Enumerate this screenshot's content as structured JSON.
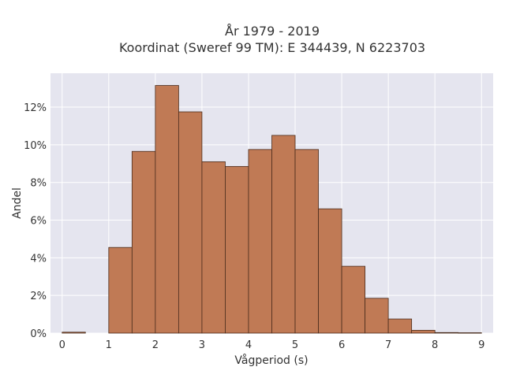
{
  "chart_data": {
    "type": "bar",
    "title_line1": "År 1979 - 2019",
    "title_line2": "Koordinat (Sweref 99 TM): E 344439, N 6223703",
    "xlabel": "Vågperiod (s)",
    "ylabel": "Andel",
    "x_ticks": [
      "0",
      "1",
      "2",
      "3",
      "4",
      "5",
      "6",
      "7",
      "8",
      "9"
    ],
    "y_ticks": [
      "0%",
      "2%",
      "4%",
      "6%",
      "8%",
      "10%",
      "12%"
    ],
    "xlim": [
      -0.25,
      9.25
    ],
    "ylim": [
      0,
      13.8
    ],
    "bin_width": 0.5,
    "bin_starts": [
      0,
      0.5,
      1,
      1.5,
      2,
      2.5,
      3,
      3.5,
      4,
      4.5,
      5,
      5.5,
      6,
      6.5,
      7,
      7.5,
      8,
      8.5
    ],
    "values": [
      0.05,
      0,
      4.55,
      9.65,
      13.15,
      11.75,
      9.1,
      8.85,
      9.75,
      10.5,
      9.75,
      6.6,
      3.55,
      1.85,
      0.75,
      0.15,
      0.03,
      0.02
    ],
    "grid": true,
    "colors": {
      "bar_fill": "#c07a55",
      "bar_stroke": "#4a2c1c",
      "plot_bg": "#e5e5ef",
      "grid": "#ffffff"
    }
  }
}
